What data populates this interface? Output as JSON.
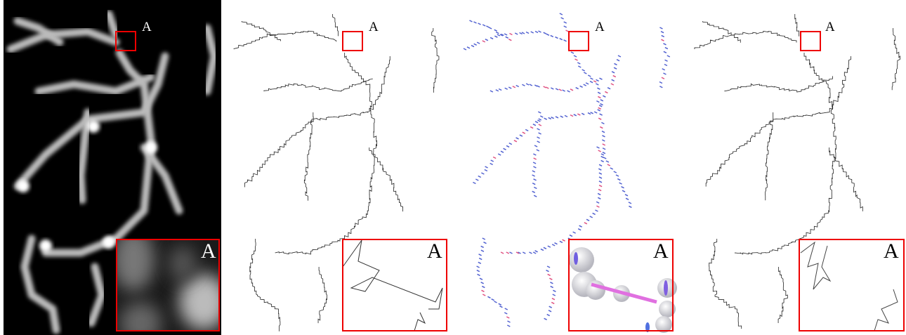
{
  "panels": [
    {
      "label": "A",
      "inset_label": "A"
    },
    {
      "label": "A",
      "inset_label": "A"
    },
    {
      "label": "A",
      "inset_label": "A"
    },
    {
      "label": "A",
      "inset_label": "A"
    }
  ]
}
